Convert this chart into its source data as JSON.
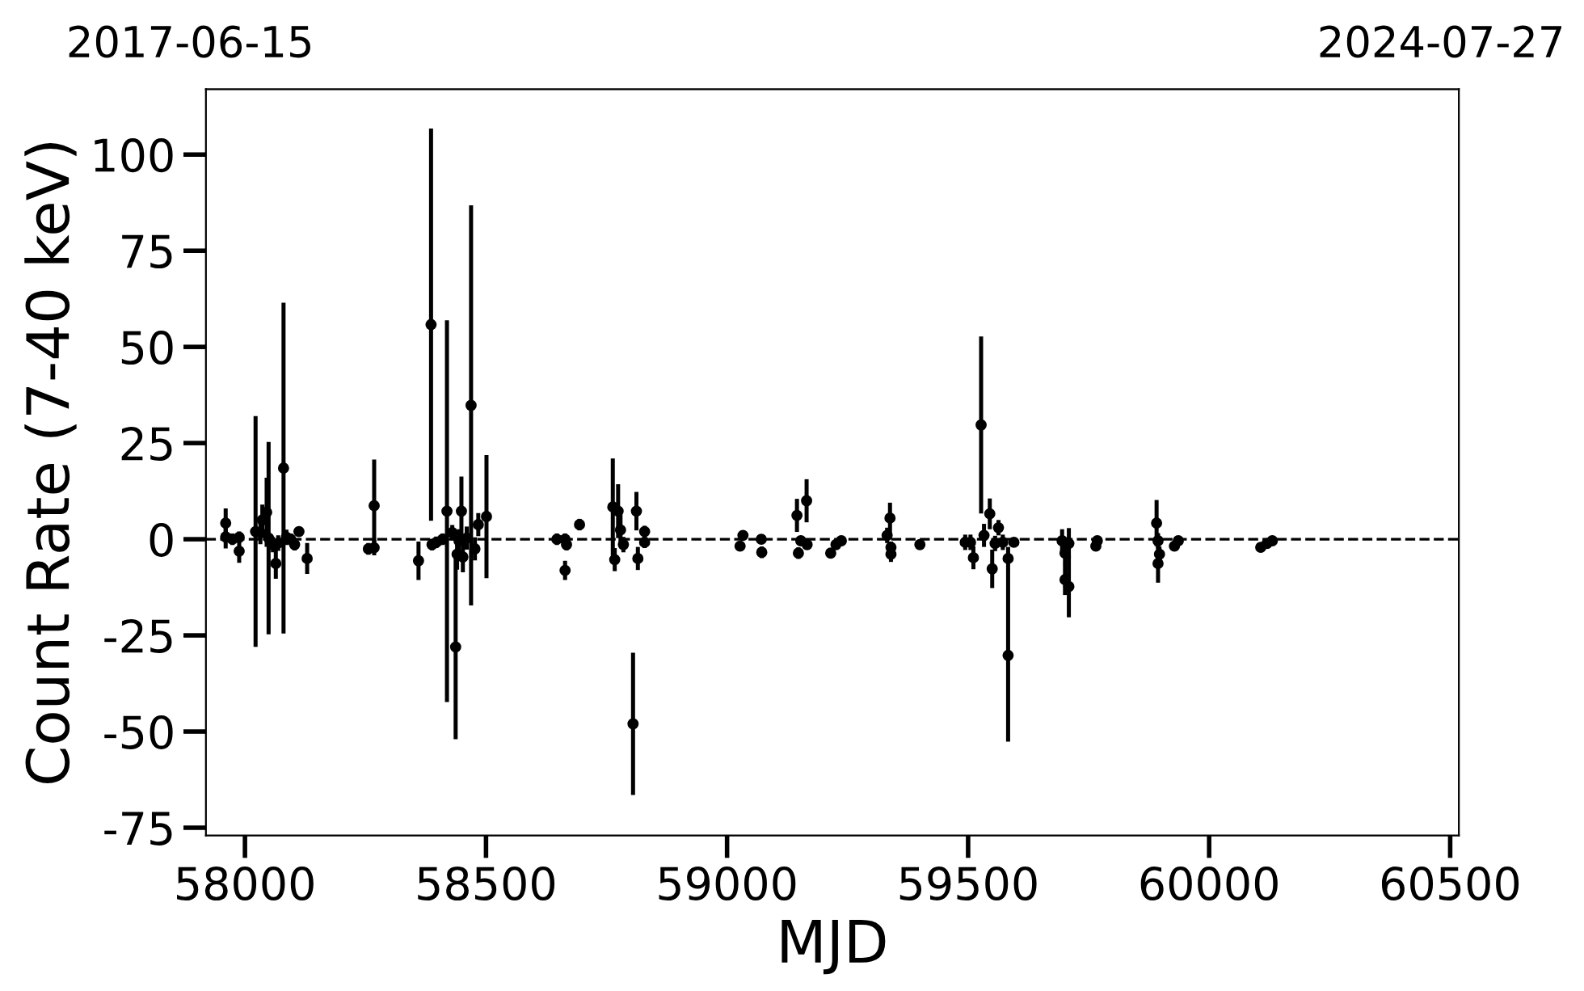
{
  "chart_data": {
    "type": "scatter",
    "xlabel": "MJD",
    "ylabel": "Count Rate (7-40 keV)",
    "x": [
      57960,
      57960,
      57974,
      57988,
      57988,
      58022,
      58032,
      58036,
      58045,
      58049,
      58058,
      58064,
      58069,
      58080,
      58086,
      58095,
      58103,
      58112,
      58129,
      58256,
      58268,
      58268,
      58360,
      58386,
      58388,
      58397,
      58410,
      58419,
      58430,
      58437,
      58440,
      58444,
      58449,
      58452,
      58460,
      58469,
      58477,
      58484,
      58501,
      58647,
      58664,
      58664,
      58667,
      58694,
      58763,
      58767,
      58774,
      58779,
      58785,
      58805,
      58812,
      58815,
      58829,
      58829,
      59027,
      59033,
      59071,
      59072,
      59145,
      59148,
      59153,
      59165,
      59166,
      59215,
      59226,
      59237,
      59332,
      59338,
      59340,
      59340,
      59400,
      59494,
      59505,
      59511,
      59527,
      59533,
      59545,
      59550,
      59556,
      59563,
      59572,
      59583,
      59583,
      59595,
      59695,
      59701,
      59701,
      59709,
      59709,
      59765,
      59768,
      59891,
      59894,
      59894,
      59897,
      59928,
      59936,
      60107,
      60120,
      60131
    ],
    "values": [
      4.2,
      0.6,
      0,
      0.5,
      -3.1,
      2,
      1.7,
      5,
      7,
      0.3,
      -1.4,
      -6.3,
      -1,
      18.5,
      0.5,
      0,
      -1.4,
      2,
      -5,
      -2.5,
      8.7,
      -2.2,
      -5.6,
      55.8,
      -1.4,
      -0.8,
      0,
      7.3,
      1.7,
      -28,
      -3.9,
      -0.4,
      7.3,
      -4.6,
      0.3,
      34.8,
      -2.5,
      3.8,
      5.9,
      0,
      0,
      -8.1,
      -1.4,
      3.8,
      8.4,
      -5.3,
      7.3,
      2.4,
      -1.4,
      -48,
      7.3,
      -5,
      2,
      -0.8,
      -1.8,
      1,
      0,
      -3.4,
      6.2,
      -3.6,
      -0.4,
      10,
      -1.4,
      -3.6,
      -1.4,
      -0.4,
      1,
      5.5,
      -2.1,
      -3.9,
      -1.4,
      -0.8,
      -0.8,
      -4.8,
      29.7,
      1,
      6.6,
      -7.7,
      -1.1,
      3,
      -0.8,
      -30.2,
      -5,
      -0.8,
      -0.4,
      -3.6,
      -10.5,
      -12.3,
      -1.1,
      -1.8,
      -0.4,
      4.2,
      -0.4,
      -6.3,
      -3.9,
      -1.8,
      -0.4,
      -2.1,
      -1.1,
      -0.4
    ],
    "errors": [
      3.8,
      3,
      1.5,
      1.5,
      3,
      30,
      3,
      4,
      9,
      25,
      2,
      4,
      2,
      43,
      2,
      1.5,
      1.5,
      1,
      4,
      1.5,
      12,
      2,
      5,
      51,
      1.5,
      1.5,
      1.5,
      49.6,
      2,
      24,
      4,
      3,
      9,
      4,
      3,
      52,
      3,
      3,
      16,
      1.5,
      1.5,
      2.5,
      1.5,
      1.5,
      12.6,
      3,
      7,
      4,
      2,
      18.5,
      5,
      3,
      1.5,
      1.5,
      1,
      1,
      1,
      1.5,
      4.3,
      1.5,
      1,
      5.6,
      1,
      1,
      1,
      1,
      2,
      4,
      1.5,
      2,
      1,
      2,
      2,
      3,
      23,
      3,
      4,
      5,
      2,
      2,
      2,
      22.4,
      3,
      1,
      3,
      3,
      4,
      8,
      4,
      1,
      1,
      6,
      2,
      5,
      2,
      1,
      1,
      1,
      1,
      1
    ],
    "color": "#000000",
    "marker": "circle",
    "xlim": [
      57919,
      60518
    ],
    "xticks": [
      58000,
      58500,
      59000,
      59500,
      60000,
      60500
    ],
    "ylim": [
      -77,
      117
    ],
    "yticks": [
      -75,
      -50,
      -25,
      0,
      25,
      50,
      75,
      100
    ],
    "annotations": [
      "2017-06-15",
      "2024-07-27"
    ],
    "ref_lines": [
      {
        "axis": "y",
        "value": 0,
        "line_style": "dashed",
        "color": "#000000"
      }
    ]
  }
}
